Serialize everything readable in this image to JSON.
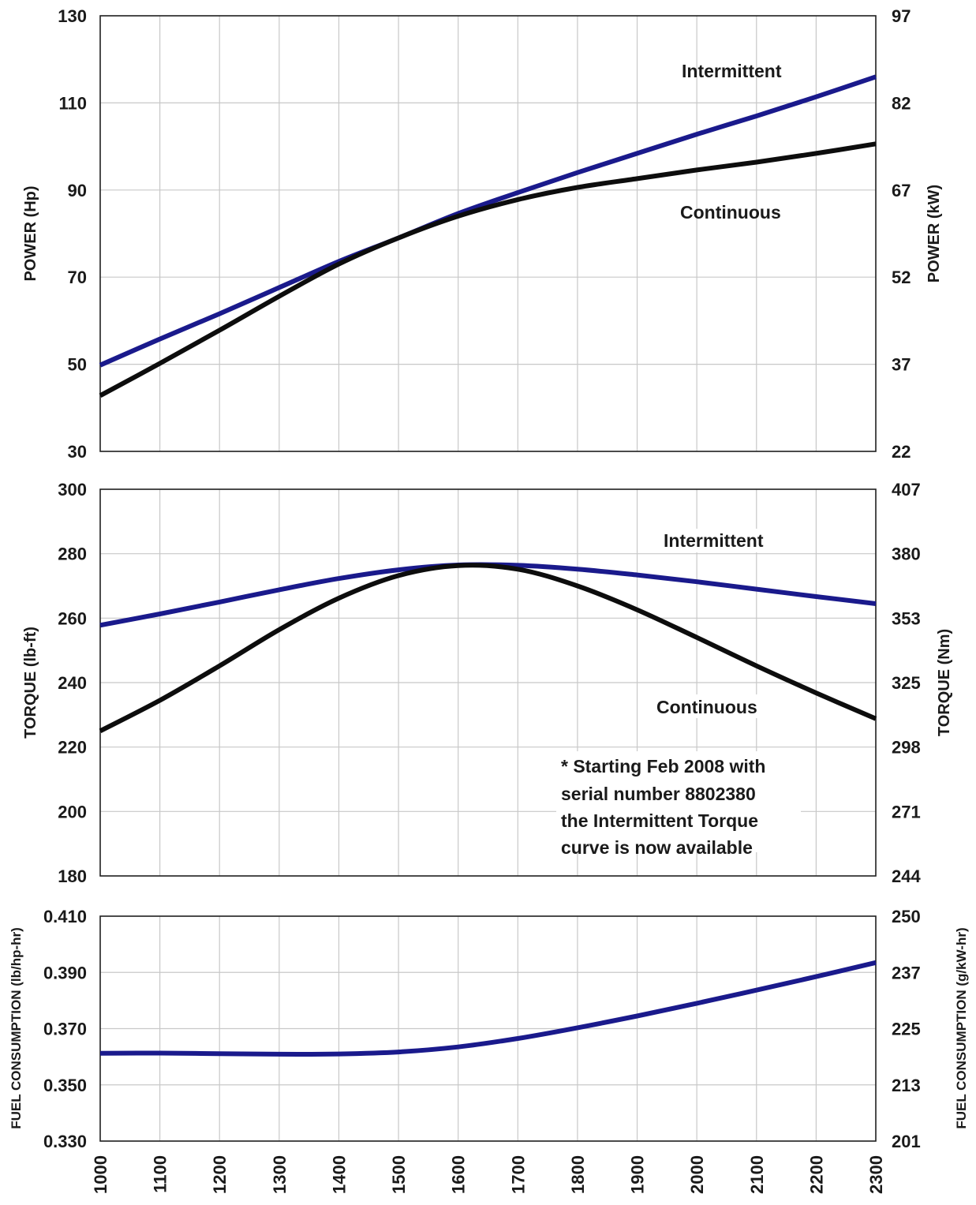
{
  "colors": {
    "intermittent": "#1a1a8c",
    "continuous": "#0d0d0d"
  },
  "x_ticks": [
    "1000",
    "1100",
    "1200",
    "1300",
    "1400",
    "1500",
    "1600",
    "1700",
    "1800",
    "1900",
    "2000",
    "2100",
    "2200",
    "2300"
  ],
  "chart_data": [
    {
      "type": "line",
      "title": "",
      "ylabel": "POWER (Hp)",
      "ylabel_right": "POWER (kW)",
      "xlim": [
        1000,
        2300
      ],
      "ylim": [
        30,
        130
      ],
      "y_ticks": [
        "130",
        "110",
        "90",
        "70",
        "50",
        "30"
      ],
      "y_ticks_right": [
        "97",
        "82",
        "67",
        "52",
        "37",
        "22"
      ],
      "grid": true,
      "x": [
        1000,
        1100,
        1200,
        1300,
        1400,
        1500,
        1600,
        1700,
        1800,
        1900,
        2000,
        2100,
        2200,
        2300
      ],
      "series": [
        {
          "name": "Intermittent",
          "color": "#1a1a8c",
          "values": [
            49.8,
            55.8,
            61.6,
            67.6,
            73.6,
            79.0,
            84.6,
            89.4,
            94.0,
            98.4,
            102.8,
            107.0,
            111.4,
            116.0
          ]
        },
        {
          "name": "Continuous",
          "color": "#0d0d0d",
          "values": [
            42.8,
            50.2,
            57.8,
            65.6,
            73.0,
            79.0,
            84.0,
            87.8,
            90.6,
            92.6,
            94.6,
            96.4,
            98.4,
            100.6
          ]
        }
      ]
    },
    {
      "type": "line",
      "title": "",
      "ylabel": "TORQUE (lb-ft)",
      "ylabel_right": "TORQUE (Nm)",
      "xlim": [
        1000,
        2300
      ],
      "ylim": [
        180,
        300
      ],
      "y_ticks": [
        "300",
        "280",
        "260",
        "240",
        "220",
        "200",
        "180"
      ],
      "y_ticks_right": [
        "407",
        "380",
        "353",
        "325",
        "298",
        "271",
        "244"
      ],
      "grid": true,
      "x": [
        1000,
        1100,
        1200,
        1300,
        1400,
        1500,
        1600,
        1700,
        1800,
        1900,
        2000,
        2100,
        2200,
        2300
      ],
      "series": [
        {
          "name": "Intermittent",
          "color": "#1a1a8c",
          "values": [
            257.8,
            261.3,
            265.0,
            268.8,
            272.3,
            275.0,
            276.5,
            276.4,
            275.2,
            273.4,
            271.3,
            269.0,
            266.7,
            264.5
          ]
        },
        {
          "name": "Continuous",
          "color": "#0d0d0d",
          "values": [
            225.0,
            234.5,
            245.2,
            256.4,
            266.2,
            273.2,
            276.3,
            275.2,
            270.0,
            262.6,
            254.0,
            245.2,
            236.8,
            228.8
          ]
        }
      ],
      "annotation": "* Starting Feb 2008 with serial number 8802380 the Intermittent Torque curve is now available"
    },
    {
      "type": "line",
      "title": "",
      "ylabel": "FUEL CONSUMPTION (lb/hp-hr)",
      "ylabel_right": "FUEL CONSUMPTION (g/kW-hr)",
      "xlim": [
        1000,
        2300
      ],
      "ylim": [
        0.33,
        0.41
      ],
      "y_ticks": [
        "0.410",
        "0.390",
        "0.370",
        "0.350",
        "0.330"
      ],
      "y_ticks_right": [
        "250",
        "237",
        "225",
        "213",
        "201"
      ],
      "grid": true,
      "x": [
        1000,
        1100,
        1200,
        1300,
        1400,
        1500,
        1600,
        1700,
        1800,
        1900,
        2000,
        2100,
        2200,
        2300
      ],
      "series": [
        {
          "name": "",
          "color": "#1a1a8c",
          "values": [
            0.3612,
            0.3613,
            0.3611,
            0.3609,
            0.361,
            0.3617,
            0.3635,
            0.3665,
            0.3703,
            0.3745,
            0.379,
            0.3837,
            0.3885,
            0.3935
          ]
        }
      ]
    }
  ],
  "labels": {
    "power_intermittent": "Intermittent",
    "power_continuous": "Continuous",
    "torque_intermittent": "Intermittent",
    "torque_continuous": "Continuous",
    "note_lines": [
      "* Starting Feb 2008 with",
      "serial number 8802380",
      "the Intermittent Torque",
      "curve is now available"
    ]
  }
}
